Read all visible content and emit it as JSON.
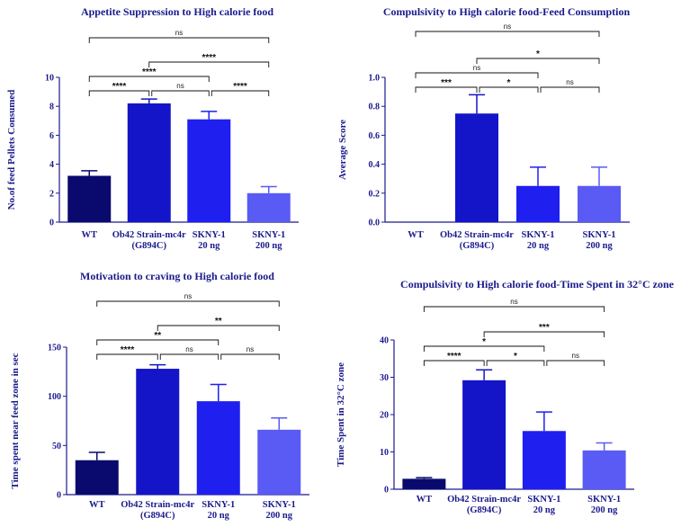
{
  "chart_data": [
    {
      "type": "bar",
      "title": "Appetite Suppression to High calorie food",
      "ylabel": "No.of  feed Pellets Consumed",
      "xlabel": "",
      "ylim": [
        0,
        10
      ],
      "yticks": [
        0,
        2,
        4,
        6,
        8,
        10
      ],
      "categories": [
        [
          "WT"
        ],
        [
          "Ob42 Strain-mc4r",
          "(G894C)"
        ],
        [
          "SKNY-1",
          "20 ng"
        ],
        [
          "SKNY-1",
          "200 ng"
        ]
      ],
      "values": [
        3.2,
        8.2,
        7.1,
        2.0
      ],
      "errors": [
        0.35,
        0.3,
        0.55,
        0.45
      ],
      "colors": [
        "#0a0a6e",
        "#1414c8",
        "#1f1ff0",
        "#5a5af5"
      ],
      "comparisons": [
        {
          "from": 0,
          "to": 3,
          "label": "ns"
        },
        {
          "from": 1,
          "to": 3,
          "label": "****"
        },
        {
          "from": 0,
          "to": 2,
          "label": "****"
        },
        {
          "from": 0,
          "to": 1,
          "label": "****"
        },
        {
          "from": 1,
          "to": 2,
          "label": "ns"
        },
        {
          "from": 2,
          "to": 3,
          "label": "****"
        }
      ]
    },
    {
      "type": "bar",
      "title": "Compulsivity to High calorie food-Feed Consumption",
      "ylabel": "Average Score",
      "xlabel": "",
      "ylim": [
        0,
        1.0
      ],
      "yticks": [
        0.0,
        0.2,
        0.4,
        0.6,
        0.8,
        1.0
      ],
      "categories": [
        [
          "WT"
        ],
        [
          "Ob42 Strain-mc4r",
          "(G894C)"
        ],
        [
          "SKNY-1",
          "20 ng"
        ],
        [
          "SKNY-1",
          "200 ng"
        ]
      ],
      "values": [
        0.0,
        0.75,
        0.25,
        0.25
      ],
      "errors": [
        0.0,
        0.13,
        0.13,
        0.13
      ],
      "colors": [
        "#0a0a6e",
        "#1414c8",
        "#1f1ff0",
        "#5a5af5"
      ],
      "comparisons": [
        {
          "from": 0,
          "to": 3,
          "label": "ns"
        },
        {
          "from": 1,
          "to": 3,
          "label": "*"
        },
        {
          "from": 0,
          "to": 2,
          "label": "ns"
        },
        {
          "from": 0,
          "to": 1,
          "label": "***"
        },
        {
          "from": 1,
          "to": 2,
          "label": "*"
        },
        {
          "from": 2,
          "to": 3,
          "label": "ns"
        }
      ]
    },
    {
      "type": "bar",
      "title": "Motivation to craving to High calorie food",
      "ylabel": "Time spent near feed zone in sec",
      "xlabel": "",
      "ylim": [
        0,
        150
      ],
      "yticks": [
        0,
        50,
        100,
        150
      ],
      "categories": [
        [
          "WT"
        ],
        [
          "Ob42 Strain-mc4r",
          "(G894C)"
        ],
        [
          "SKNY-1",
          "20 ng"
        ],
        [
          "SKNY-1",
          "200 ng"
        ]
      ],
      "values": [
        35,
        128,
        95,
        66
      ],
      "errors": [
        8,
        4,
        17,
        12
      ],
      "colors": [
        "#0a0a6e",
        "#1414c8",
        "#1f1ff0",
        "#5a5af5"
      ],
      "comparisons": [
        {
          "from": 0,
          "to": 3,
          "label": "ns"
        },
        {
          "from": 1,
          "to": 3,
          "label": "**"
        },
        {
          "from": 0,
          "to": 2,
          "label": "**"
        },
        {
          "from": 0,
          "to": 1,
          "label": "****"
        },
        {
          "from": 1,
          "to": 2,
          "label": "ns"
        },
        {
          "from": 2,
          "to": 3,
          "label": "ns"
        }
      ]
    },
    {
      "type": "bar",
      "title": "Compulsivity to High calorie food-Time Spent in 32°C zone",
      "ylabel": "Time Spent in 32°C zone",
      "xlabel": "",
      "ylim": [
        0,
        40
      ],
      "yticks": [
        0,
        10,
        20,
        30,
        40
      ],
      "categories": [
        [
          "WT"
        ],
        [
          "Ob42 Strain-mc4r",
          "(G894C)"
        ],
        [
          "SKNY-1",
          "20 ng"
        ],
        [
          "SKNY-1",
          "200 ng"
        ]
      ],
      "values": [
        2.8,
        29.2,
        15.6,
        10.4
      ],
      "errors": [
        0.3,
        2.8,
        5.1,
        2.0
      ],
      "colors": [
        "#0a0a6e",
        "#1414c8",
        "#1f1ff0",
        "#5a5af5"
      ],
      "comparisons": [
        {
          "from": 0,
          "to": 3,
          "label": "ns"
        },
        {
          "from": 1,
          "to": 3,
          "label": "***"
        },
        {
          "from": 0,
          "to": 2,
          "label": "*"
        },
        {
          "from": 0,
          "to": 1,
          "label": "****"
        },
        {
          "from": 1,
          "to": 2,
          "label": "*"
        },
        {
          "from": 2,
          "to": 3,
          "label": "ns"
        }
      ]
    }
  ]
}
